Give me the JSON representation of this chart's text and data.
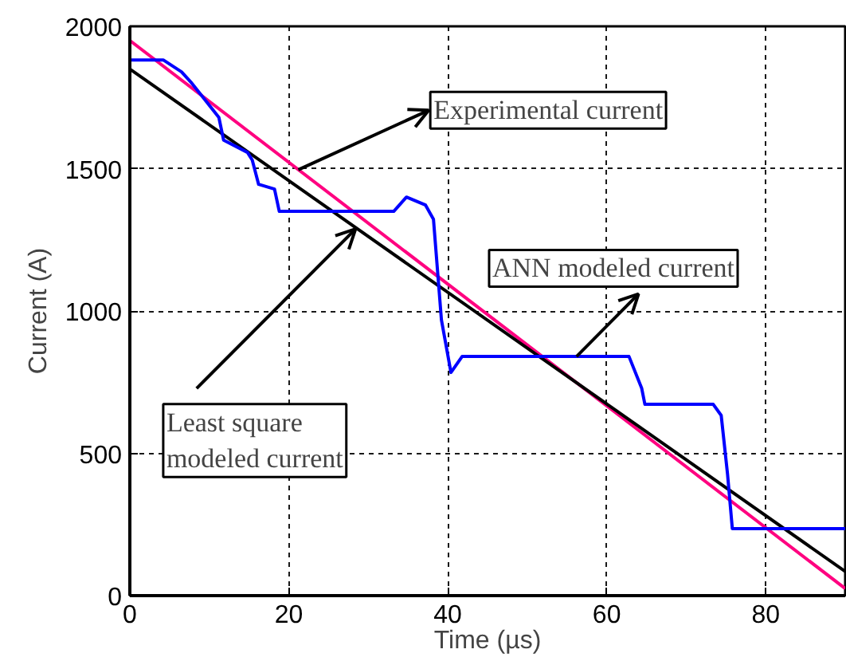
{
  "chart_data": {
    "type": "line",
    "xlabel": "Time (µs)",
    "ylabel": "Current (A)",
    "xlim": [
      0,
      90
    ],
    "ylim": [
      0,
      2000
    ],
    "xticks": [
      0,
      20,
      40,
      60,
      80
    ],
    "yticks": [
      0,
      500,
      1000,
      1500,
      2000
    ],
    "grid": true,
    "line_style": "solid",
    "marker": "none",
    "series": [
      {
        "color": "#ff0080",
        "x": [
          0,
          90
        ],
        "values": [
          1950,
          25
        ]
      },
      {
        "color": "#000000",
        "x": [
          0,
          90
        ],
        "values": [
          1850,
          85
        ]
      },
      {
        "color": "#0000ff",
        "x": [
          0,
          4.2,
          6.5,
          7.8,
          11.2,
          11.8,
          14.8,
          15.4,
          16.2,
          18.2,
          18.8,
          33.2,
          34.8,
          37.2,
          38.2,
          39.2,
          40.4,
          41.8,
          62.8,
          64.4,
          64.8,
          73.4,
          74.4,
          75.2,
          75.8,
          90
        ],
        "values": [
          1882,
          1882,
          1840,
          1800,
          1680,
          1600,
          1557,
          1530,
          1445,
          1428,
          1350,
          1350,
          1400,
          1372,
          1322,
          969,
          784,
          840,
          840,
          728,
          672,
          672,
          633,
          426,
          235,
          235
        ]
      }
    ],
    "annotations": [
      {
        "text": "Experimental current",
        "x": 21.2,
        "y": 1496
      },
      {
        "text": "Least square\nmodeled current",
        "x": 28.4,
        "y": 1288
      },
      {
        "text": "ANN modeled current",
        "x": 56.2,
        "y": 840
      }
    ]
  }
}
